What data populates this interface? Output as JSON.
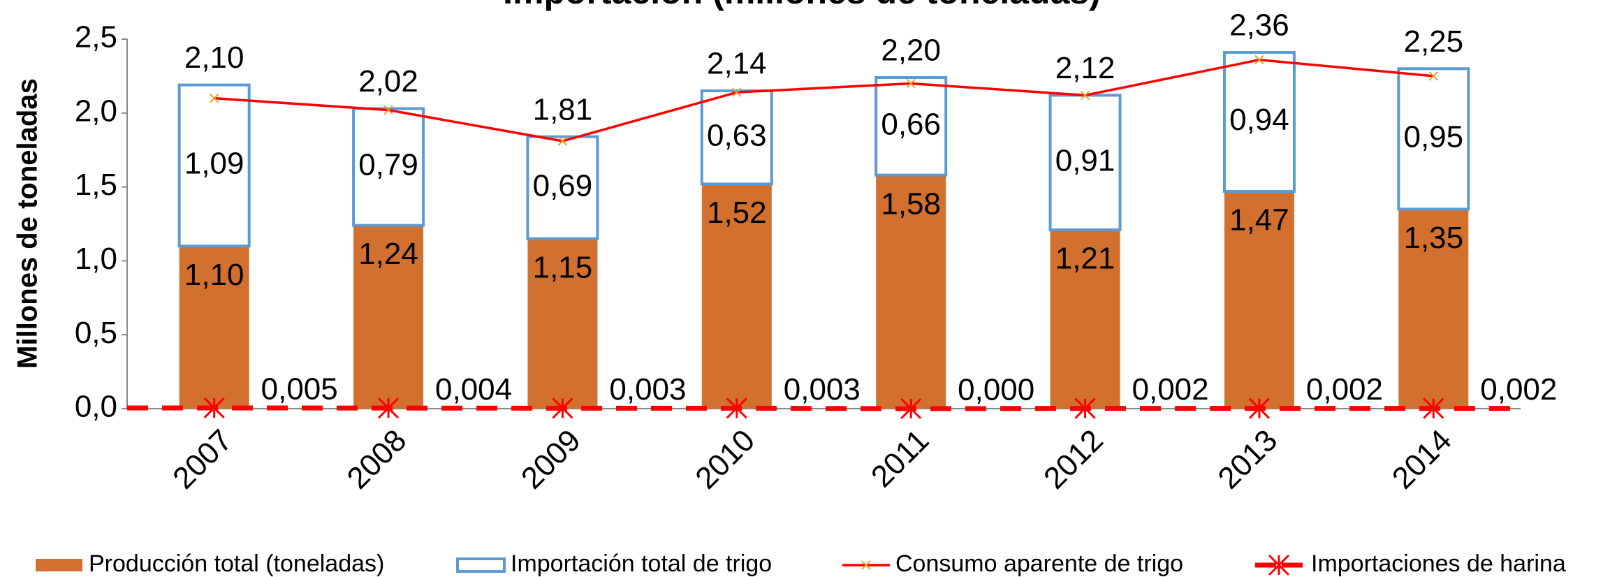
{
  "chart_data": {
    "type": "bar",
    "title": "Importación (millones de toneladas)",
    "y_label": "Millones de toneladas",
    "categories": [
      "2007",
      "2008",
      "2009",
      "2010",
      "2011",
      "2012",
      "2013",
      "2014"
    ],
    "ylim": [
      0,
      2.5
    ],
    "yticks": [
      {
        "value": 0,
        "label": "0,0"
      },
      {
        "value": 0.5,
        "label": "0,5"
      },
      {
        "value": 1,
        "label": "1,0"
      },
      {
        "value": 1.5,
        "label": "1,5"
      },
      {
        "value": 2,
        "label": "2,0"
      },
      {
        "value": 2.5,
        "label": "2,5"
      }
    ],
    "series": [
      {
        "name": "Producción total (toneladas)",
        "type": "bar",
        "color": "#d2702f",
        "values": [
          1.1,
          1.24,
          1.15,
          1.52,
          1.58,
          1.21,
          1.47,
          1.35
        ],
        "value_labels": [
          "1,10",
          "1,24",
          "1,15",
          "1,52",
          "1,58",
          "1,21",
          "1,47",
          "1,35"
        ]
      },
      {
        "name": "Importación total de trigo",
        "type": "bar",
        "color": "#5b9bd5",
        "values": [
          1.09,
          0.79,
          0.69,
          0.63,
          0.66,
          0.91,
          0.94,
          0.95
        ],
        "value_labels": [
          "1,09",
          "0,79",
          "0,69",
          "0,63",
          "0,66",
          "0,91",
          "0,94",
          "0,95"
        ]
      },
      {
        "name": "Consumo aparente de trigo",
        "type": "line",
        "color": "#ff0000",
        "marker_color": "#f0a030",
        "values": [
          2.1,
          2.02,
          1.81,
          2.14,
          2.2,
          2.12,
          2.36,
          2.25
        ],
        "value_labels": [
          "2,10",
          "2,02",
          "1,81",
          "2,14",
          "2,20",
          "2,12",
          "2,36",
          "2,25"
        ]
      },
      {
        "name": "Importaciones de harina",
        "type": "line",
        "color": "#ff0000",
        "values": [
          0.005,
          0.004,
          0.003,
          0.003,
          0.0,
          0.002,
          0.002,
          0.002
        ],
        "value_labels": [
          "0,005",
          "0,004",
          "0,003",
          "0,003",
          "0,000",
          "0,002",
          "0,002",
          "0,002"
        ]
      }
    ]
  }
}
